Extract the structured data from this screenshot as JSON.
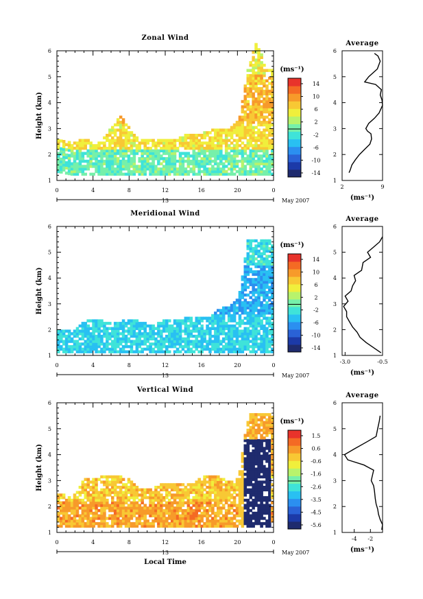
{
  "colorscale": [
    "#1f2b6e",
    "#1c3aa8",
    "#2a62d6",
    "#2b8ff0",
    "#29c0f2",
    "#3fe3d9",
    "#76f0aa",
    "#b8f36c",
    "#f0ef3c",
    "#f8c834",
    "#f79a2a",
    "#f46a24",
    "#e8332b"
  ],
  "shared": {
    "x_ticks": [
      "0",
      "4",
      "8",
      "12",
      "16",
      "20",
      "0"
    ],
    "date_bar_label": "13",
    "date_suffix": "May 2007",
    "xlabel": "Local Time",
    "ylabel": "Height (km)",
    "average_title": "Average"
  },
  "chart_data": [
    {
      "type": "heatmap",
      "title": "Zonal Wind",
      "xlabel": "Local Time",
      "ylabel": "Height (km)",
      "ylim": [
        1,
        6
      ],
      "y_ticks": [
        "1",
        "2",
        "3",
        "4",
        "5",
        "6"
      ],
      "colorbar": {
        "unit": "(ms⁻¹)",
        "ticks": [
          "14",
          "10",
          "6",
          "2",
          "-2",
          "-6",
          "-10",
          "-14"
        ],
        "range": [
          -15,
          15
        ]
      },
      "coverage": [
        [
          0,
          1.3,
          2.6
        ],
        [
          1.5,
          1.2,
          2.4
        ],
        [
          3,
          1.2,
          2.6
        ],
        [
          4,
          1.2,
          2.3
        ],
        [
          5,
          1.2,
          2.6
        ],
        [
          6,
          1.2,
          3.1
        ],
        [
          7,
          1.2,
          3.5
        ],
        [
          8,
          1.2,
          2.9
        ],
        [
          9,
          1.2,
          2.5
        ],
        [
          10,
          1.2,
          2.6
        ],
        [
          11,
          1.2,
          2.6
        ],
        [
          12,
          1.2,
          2.6
        ],
        [
          13,
          1.2,
          2.6
        ],
        [
          14,
          1.2,
          2.7
        ],
        [
          15,
          1.2,
          2.8
        ],
        [
          16,
          1.2,
          2.8
        ],
        [
          17,
          1.2,
          2.9
        ],
        [
          18,
          1.2,
          3.0
        ],
        [
          19,
          1.2,
          3.0
        ],
        [
          20,
          1.2,
          3.3
        ],
        [
          21,
          1.2,
          5.2
        ],
        [
          22,
          1.2,
          6.4
        ],
        [
          23,
          1.2,
          5.2
        ],
        [
          24,
          1.2,
          5.2
        ]
      ],
      "bands": [
        [
          1.2,
          2.2,
          -1
        ],
        [
          2.2,
          3.2,
          5
        ],
        [
          3.2,
          5.0,
          7
        ],
        [
          5.0,
          6.4,
          4
        ]
      ],
      "average": {
        "xlim": [
          2,
          9
        ],
        "x_ticks": [
          "2",
          "9"
        ],
        "xlabel": "(ms⁻¹)",
        "ylim": [
          1,
          6
        ],
        "y_ticks": [
          "1",
          "2",
          "3",
          "4",
          "5",
          "6"
        ],
        "x": [
          3.2,
          3.4,
          3.7,
          4.3,
          5.0,
          5.9,
          6.8,
          7.1,
          7.0,
          6.4,
          6.1,
          6.6,
          7.6,
          8.4,
          8.8,
          9.0,
          8.9,
          8.6,
          8.8,
          7.8,
          5.9,
          6.6,
          8.1,
          8.6,
          8.2,
          7.6
        ],
        "y": [
          1.3,
          1.4,
          1.6,
          1.8,
          2.0,
          2.2,
          2.4,
          2.6,
          2.8,
          2.9,
          3.0,
          3.2,
          3.4,
          3.6,
          3.8,
          3.9,
          4.1,
          4.3,
          4.5,
          4.7,
          4.8,
          5.0,
          5.3,
          5.6,
          5.8,
          5.9
        ]
      }
    },
    {
      "type": "heatmap",
      "title": "Meridional Wind",
      "xlabel": "Local Time",
      "ylabel": "Height (km)",
      "ylim": [
        1,
        6
      ],
      "y_ticks": [
        "1",
        "2",
        "3",
        "4",
        "5",
        "6"
      ],
      "colorbar": {
        "unit": "(ms⁻¹)",
        "ticks": [
          "14",
          "10",
          "6",
          "2",
          "-2",
          "-6",
          "-10",
          "-14"
        ],
        "range": [
          -15,
          15
        ]
      },
      "coverage": [
        [
          0,
          1.1,
          2.0
        ],
        [
          1.5,
          1.1,
          1.9
        ],
        [
          3,
          1.1,
          2.3
        ],
        [
          4,
          1.1,
          2.4
        ],
        [
          5,
          1.1,
          2.3
        ],
        [
          6,
          1.1,
          2.2
        ],
        [
          7,
          1.1,
          2.3
        ],
        [
          8,
          1.1,
          2.4
        ],
        [
          9,
          1.1,
          2.3
        ],
        [
          10,
          1.1,
          2.2
        ],
        [
          11,
          1.1,
          2.2
        ],
        [
          12,
          1.1,
          2.4
        ],
        [
          13,
          1.1,
          2.3
        ],
        [
          14,
          1.1,
          2.4
        ],
        [
          15,
          1.1,
          2.5
        ],
        [
          16,
          1.1,
          2.4
        ],
        [
          17,
          1.1,
          2.6
        ],
        [
          18,
          1.1,
          2.8
        ],
        [
          19,
          1.1,
          2.9
        ],
        [
          20,
          1.1,
          3.2
        ],
        [
          21,
          1.1,
          5.4
        ],
        [
          22,
          1.1,
          5.5
        ],
        [
          23,
          1.1,
          5.4
        ],
        [
          24,
          1.1,
          5.5
        ]
      ],
      "bands": [
        [
          1.1,
          2.6,
          -4
        ],
        [
          2.6,
          4.5,
          -6
        ],
        [
          4.5,
          5.5,
          -3
        ]
      ],
      "average": {
        "xlim": [
          -3.2,
          -0.5
        ],
        "x_ticks": [
          "-3.0",
          "-0.5"
        ],
        "xlabel": "(ms⁻¹)",
        "ylim": [
          1,
          6
        ],
        "y_ticks": [
          "1",
          "2",
          "3",
          "4",
          "5",
          "6"
        ],
        "x": [
          -0.6,
          -1.1,
          -1.6,
          -2.0,
          -2.2,
          -2.5,
          -2.7,
          -2.9,
          -2.9,
          -3.1,
          -2.8,
          -3.0,
          -2.6,
          -2.5,
          -2.3,
          -2.4,
          -1.9,
          -1.8,
          -1.3,
          -1.5,
          -1.1,
          -0.7,
          -0.5
        ],
        "y": [
          1.1,
          1.3,
          1.5,
          1.7,
          1.9,
          2.1,
          2.3,
          2.5,
          2.7,
          2.9,
          3.1,
          3.3,
          3.5,
          3.7,
          3.9,
          4.1,
          4.3,
          4.6,
          4.8,
          5.0,
          5.2,
          5.4,
          5.6
        ]
      }
    },
    {
      "type": "heatmap",
      "title": "Vertical Wind",
      "xlabel": "Local Time",
      "ylabel": "Height (km)",
      "ylim": [
        1,
        6
      ],
      "y_ticks": [
        "1",
        "2",
        "3",
        "4",
        "5",
        "6"
      ],
      "colorbar": {
        "unit": "(ms⁻¹)",
        "ticks": [
          "1.5",
          "0.6",
          "-0.6",
          "-1.6",
          "-2.6",
          "-3.5",
          "-4.5",
          "-5.6"
        ],
        "range": [
          -6,
          2
        ]
      },
      "coverage": [
        [
          0,
          1.2,
          2.5
        ],
        [
          1.5,
          1.2,
          2.3
        ],
        [
          3,
          1.2,
          3.1
        ],
        [
          4,
          1.2,
          3.0
        ],
        [
          5,
          1.2,
          3.2
        ],
        [
          6,
          1.2,
          3.2
        ],
        [
          7,
          1.2,
          3.1
        ],
        [
          8,
          1.2,
          3.0
        ],
        [
          9,
          1.2,
          2.7
        ],
        [
          10,
          1.2,
          2.6
        ],
        [
          11,
          1.2,
          2.8
        ],
        [
          12,
          1.2,
          2.9
        ],
        [
          13,
          1.2,
          2.8
        ],
        [
          14,
          1.2,
          2.9
        ],
        [
          15,
          1.2,
          2.9
        ],
        [
          16,
          1.2,
          3.1
        ],
        [
          17,
          1.2,
          3.2
        ],
        [
          18,
          1.2,
          3.1
        ],
        [
          19,
          1.2,
          2.9
        ],
        [
          20,
          1.2,
          3.1
        ],
        [
          21,
          1.2,
          5.5
        ],
        [
          22,
          1.2,
          5.5
        ],
        [
          23,
          1.2,
          5.5
        ],
        [
          24,
          1.2,
          5.5
        ]
      ],
      "bands": [
        [
          1.2,
          2.2,
          0.2
        ],
        [
          2.2,
          3.2,
          -0.3
        ]
      ],
      "average": {
        "xlim": [
          -5.5,
          -0.5
        ],
        "x_ticks": [
          "-4",
          "-2"
        ],
        "xlabel": "(ms⁻¹)",
        "ylim": [
          1,
          6
        ],
        "y_ticks": [
          "1",
          "2",
          "3",
          "4",
          "5",
          "6"
        ],
        "x": [
          -0.6,
          -0.5,
          -0.8,
          -1.0,
          -1.1,
          -1.3,
          -1.4,
          -1.5,
          -1.6,
          -1.9,
          -1.6,
          -2.2,
          -2.8,
          -4.8,
          -5.2,
          -4.1,
          -2.4,
          -1.3,
          -1.1,
          -0.9,
          -0.8
        ],
        "y": [
          1.1,
          1.3,
          1.5,
          1.7,
          1.9,
          2.1,
          2.3,
          2.6,
          2.8,
          3.0,
          3.4,
          3.5,
          3.6,
          3.8,
          4.0,
          4.2,
          4.5,
          4.7,
          5.0,
          5.3,
          5.5
        ]
      }
    }
  ]
}
